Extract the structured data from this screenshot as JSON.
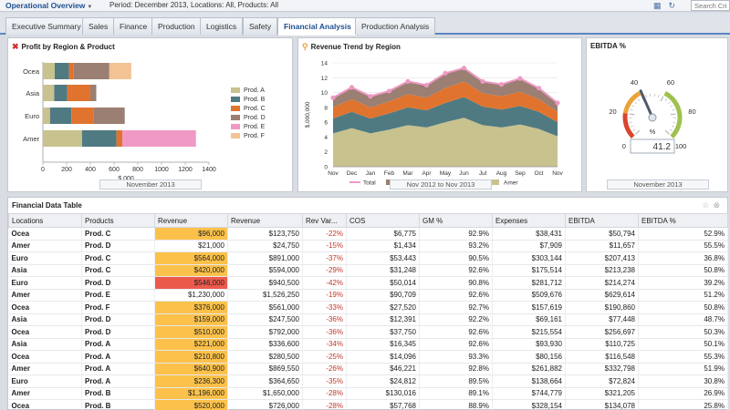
{
  "header": {
    "app_title": "Operational Overview",
    "filters": "Period: December 2013, Locations: All, Products: All",
    "search_placeholder": "Search Crite"
  },
  "tabs": [
    {
      "label": "Executive Summary",
      "active": false
    },
    {
      "label": "Sales",
      "active": false
    },
    {
      "label": "Finance",
      "active": false
    },
    {
      "label": "Production",
      "active": false
    },
    {
      "label": "Logistics",
      "active": false
    },
    {
      "label": "Safety",
      "active": false
    },
    {
      "label": "Financial Analysis",
      "active": true
    },
    {
      "label": "Production Analysis",
      "active": false
    }
  ],
  "panels": {
    "profit": {
      "title": "Profit by Region & Product",
      "footer": "November 2013",
      "icon": "close-icon"
    },
    "revenue": {
      "title": "Revenue Trend by Region",
      "footer": "Nov 2012 to Nov 2013",
      "icon": "pin-icon"
    },
    "ebitda": {
      "title": "EBITDA %",
      "footer": "November 2013"
    }
  },
  "colors": {
    "prodA": "#c8c28f",
    "prodB": "#4f7a82",
    "prodC": "#e0742f",
    "prodD": "#9a7f72",
    "prodE": "#ef99c4",
    "prodF": "#f3c394",
    "total": "#ee99c4",
    "ocea": "#9a7f72",
    "asia": "#e0742f",
    "euro": "#4f7a82",
    "amer": "#c8c28f"
  },
  "chart_data": [
    {
      "type": "bar",
      "stacked": true,
      "orientation": "horizontal",
      "title": "Profit by Region & Product",
      "categories": [
        "Ocea",
        "Asia",
        "Euro",
        "Amer"
      ],
      "series": [
        {
          "name": "Prod. A",
          "values": [
            100,
            95,
            60,
            330
          ]
        },
        {
          "name": "Prod. B",
          "values": [
            120,
            110,
            180,
            290
          ]
        },
        {
          "name": "Prod. C",
          "values": [
            40,
            195,
            190,
            50
          ]
        },
        {
          "name": "Prod. D",
          "values": [
            300,
            50,
            260,
            0
          ]
        },
        {
          "name": "Prod. E",
          "values": [
            0,
            0,
            0,
            620
          ]
        },
        {
          "name": "Prod. F",
          "values": [
            185,
            0,
            0,
            0
          ]
        }
      ],
      "xlabel": "$.000",
      "xlim": [
        0,
        1400
      ],
      "xticks": [
        "0",
        "200",
        "400",
        "600",
        "800",
        "1000",
        "1200",
        "1400"
      ],
      "legend": "right"
    },
    {
      "type": "area",
      "stacked": true,
      "title": "Revenue Trend by Region",
      "x": [
        "Nov",
        "Dec",
        "Jan",
        "Feb",
        "Mar",
        "Apr",
        "May",
        "Jun",
        "Jul",
        "Aug",
        "Sep",
        "Oct",
        "Nov"
      ],
      "series": [
        {
          "name": "Amer",
          "values": [
            4.5,
            5.2,
            4.5,
            5.0,
            5.6,
            5.3,
            6.0,
            6.6,
            5.6,
            5.3,
            5.7,
            5.1,
            4.1
          ]
        },
        {
          "name": "Euro",
          "values": [
            2.0,
            2.2,
            2.0,
            2.2,
            2.4,
            2.3,
            2.6,
            2.8,
            2.5,
            2.4,
            2.5,
            2.3,
            1.9
          ]
        },
        {
          "name": "Asia",
          "values": [
            1.5,
            1.7,
            1.5,
            1.6,
            1.8,
            1.7,
            2.0,
            2.1,
            1.8,
            1.8,
            1.9,
            1.7,
            1.4
          ]
        },
        {
          "name": "Ocea",
          "values": [
            1.3,
            1.6,
            1.5,
            1.4,
            1.7,
            1.7,
            2.0,
            1.8,
            1.6,
            1.6,
            1.8,
            1.5,
            1.2
          ]
        }
      ],
      "total": [
        9.3,
        10.7,
        9.5,
        10.2,
        11.5,
        11.0,
        12.6,
        13.3,
        11.5,
        11.1,
        11.9,
        10.6,
        8.6
      ],
      "ylabel": "$,000,000",
      "ylim": [
        0,
        14
      ],
      "yticks": [
        "0",
        "2",
        "4",
        "6",
        "8",
        "10",
        "12",
        "14"
      ],
      "legend": [
        "Total",
        "Ocea",
        "Asia",
        "Euro",
        "Amer"
      ],
      "legend_position": "bottom"
    },
    {
      "type": "gauge",
      "title": "EBITDA %",
      "value": 41.2,
      "min": 0,
      "max": 100,
      "ticks": [
        "0",
        "20",
        "40",
        "60",
        "80",
        "100"
      ],
      "unit": "%"
    }
  ],
  "table": {
    "title": "Financial Data Table",
    "columns": [
      "Locations",
      "Products",
      "Revenue",
      "Revenue",
      "Rev Var...",
      "COS",
      "GM %",
      "Expenses",
      "EBITDA",
      "EBITDA %"
    ],
    "rows": [
      {
        "loc": "Ocea",
        "prod": "Prod. C",
        "rev": "$96,000",
        "rev_level": "mid",
        "rev2": "$123,750",
        "var": "-22%",
        "cos": "$6,775",
        "gm": "92.9%",
        "exp": "$38,431",
        "ebitda": "$50,794",
        "ebitda_pct": "52.9%"
      },
      {
        "loc": "Amer",
        "prod": "Prod. D",
        "rev": "$21,000",
        "rev_level": "high",
        "rev2": "$24,750",
        "var": "-15%",
        "cos": "$1,434",
        "gm": "93.2%",
        "exp": "$7,909",
        "ebitda": "$11,657",
        "ebitda_pct": "55.5%"
      },
      {
        "loc": "Euro",
        "prod": "Prod. C",
        "rev": "$564,000",
        "rev_level": "mid",
        "rev2": "$891,000",
        "var": "-37%",
        "cos": "$53,443",
        "gm": "90.5%",
        "exp": "$303,144",
        "ebitda": "$207,413",
        "ebitda_pct": "36.8%"
      },
      {
        "loc": "Asia",
        "prod": "Prod. C",
        "rev": "$420,000",
        "rev_level": "mid",
        "rev2": "$594,000",
        "var": "-29%",
        "cos": "$31,248",
        "gm": "92.6%",
        "exp": "$175,514",
        "ebitda": "$213,238",
        "ebitda_pct": "50.8%"
      },
      {
        "loc": "Euro",
        "prod": "Prod. D",
        "rev": "$546,000",
        "rev_level": "low",
        "rev2": "$940,500",
        "var": "-42%",
        "cos": "$50,014",
        "gm": "90.8%",
        "exp": "$281,712",
        "ebitda": "$214,274",
        "ebitda_pct": "39.2%"
      },
      {
        "loc": "Amer",
        "prod": "Prod. E",
        "rev": "$1,230,000",
        "rev_level": "high",
        "rev2": "$1,526,250",
        "var": "-19%",
        "cos": "$90,709",
        "gm": "92.6%",
        "exp": "$509,676",
        "ebitda": "$629,614",
        "ebitda_pct": "51.2%"
      },
      {
        "loc": "Ocea",
        "prod": "Prod. F",
        "rev": "$376,000",
        "rev_level": "mid",
        "rev2": "$561,000",
        "var": "-33%",
        "cos": "$27,520",
        "gm": "92.7%",
        "exp": "$157,619",
        "ebitda": "$190,860",
        "ebitda_pct": "50.8%"
      },
      {
        "loc": "Asia",
        "prod": "Prod. D",
        "rev": "$159,000",
        "rev_level": "mid",
        "rev2": "$247,500",
        "var": "-36%",
        "cos": "$12,391",
        "gm": "92.2%",
        "exp": "$69,161",
        "ebitda": "$77,448",
        "ebitda_pct": "48.7%"
      },
      {
        "loc": "Ocea",
        "prod": "Prod. D",
        "rev": "$510,000",
        "rev_level": "mid",
        "rev2": "$792,000",
        "var": "-36%",
        "cos": "$37,750",
        "gm": "92.6%",
        "exp": "$215,554",
        "ebitda": "$256,697",
        "ebitda_pct": "50.3%"
      },
      {
        "loc": "Asia",
        "prod": "Prod. A",
        "rev": "$221,000",
        "rev_level": "mid",
        "rev2": "$336,600",
        "var": "-34%",
        "cos": "$16,345",
        "gm": "92.6%",
        "exp": "$93,930",
        "ebitda": "$110,725",
        "ebitda_pct": "50.1%"
      },
      {
        "loc": "Ocea",
        "prod": "Prod. A",
        "rev": "$210,800",
        "rev_level": "mid",
        "rev2": "$280,500",
        "var": "-25%",
        "cos": "$14,096",
        "gm": "93.3%",
        "exp": "$80,156",
        "ebitda": "$116,548",
        "ebitda_pct": "55.3%"
      },
      {
        "loc": "Amer",
        "prod": "Prod. A",
        "rev": "$640,900",
        "rev_level": "mid",
        "rev2": "$869,550",
        "var": "-26%",
        "cos": "$46,221",
        "gm": "92.8%",
        "exp": "$261,882",
        "ebitda": "$332,798",
        "ebitda_pct": "51.9%"
      },
      {
        "loc": "Euro",
        "prod": "Prod. A",
        "rev": "$236,300",
        "rev_level": "mid",
        "rev2": "$364,650",
        "var": "-35%",
        "cos": "$24,812",
        "gm": "89.5%",
        "exp": "$138,664",
        "ebitda": "$72,824",
        "ebitda_pct": "30.8%"
      },
      {
        "loc": "Amer",
        "prod": "Prod. B",
        "rev": "$1,196,000",
        "rev_level": "mid",
        "rev2": "$1,650,000",
        "var": "-28%",
        "cos": "$130,016",
        "gm": "89.1%",
        "exp": "$744,779",
        "ebitda": "$321,205",
        "ebitda_pct": "26.9%"
      },
      {
        "loc": "Ocea",
        "prod": "Prod. B",
        "rev": "$520,000",
        "rev_level": "mid",
        "rev2": "$726,000",
        "var": "-28%",
        "cos": "$57,768",
        "gm": "88.9%",
        "exp": "$328,154",
        "ebitda": "$134,078",
        "ebitda_pct": "25.8%"
      }
    ]
  }
}
